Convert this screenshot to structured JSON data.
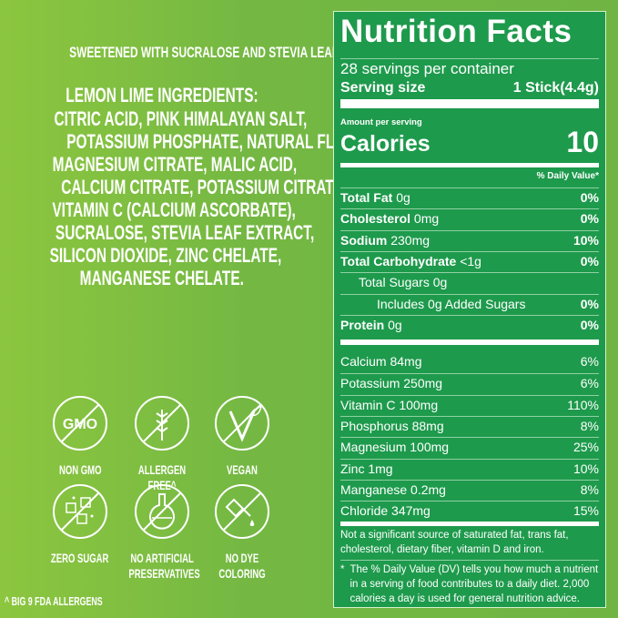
{
  "left": {
    "sweetener": "SWEETENED WITH SUCRALOSE AND STEVIA LEAF EXTRACT",
    "ingredients_title": "LEMON LIME INGREDIENTS:",
    "ingredients_lines": [
      "CITRIC ACID, PINK HIMALAYAN SALT,",
      "POTASSIUM PHOSPHATE, NATURAL FLAVOR,",
      "MAGNESIUM CITRATE, MALIC ACID,",
      "CALCIUM CITRATE, POTASSIUM CITRATE,",
      "VITAMIN C (CALCIUM ASCORBATE),",
      "SUCRALOSE, STEVIA LEAF EXTRACT,",
      "SILICON DIOXIDE, ZINC CHELATE,",
      "MANGANESE CHELATE."
    ],
    "badges": [
      {
        "icon": "non-gmo-icon",
        "label": "NON GMO",
        "icon_text": "GMO"
      },
      {
        "icon": "wheat-icon",
        "label": "ALLERGEN FREE^"
      },
      {
        "icon": "vegan-icon",
        "label": "VEGAN"
      },
      {
        "icon": "sugar-cubes-icon",
        "label": "ZERO SUGAR"
      },
      {
        "icon": "flask-icon",
        "label": "NO ARTIFICIAL",
        "label2": "PRESERVATIVES"
      },
      {
        "icon": "dropper-icon",
        "label": "NO DYE COLORING"
      }
    ],
    "footnote": "^ BIG 9 FDA ALLERGENS"
  },
  "facts": {
    "title": "Nutrition Facts",
    "servings": "28 servings per container",
    "serving_size_label": "Serving size",
    "serving_size_value": "1 Stick(4.4g)",
    "amount_per_serving": "Amount per serving",
    "calories_label": "Calories",
    "calories_value": "10",
    "dv_header": "% Daily Value*",
    "nutrients": [
      {
        "name": "Total Fat",
        "amount": "0g",
        "dv": "0%"
      },
      {
        "name": "Cholesterol",
        "amount": "0mg",
        "dv": "0%"
      },
      {
        "name": "Sodium",
        "amount": "230mg",
        "dv": "10%"
      },
      {
        "name": "Total Carbohydrate",
        "amount": "<1g",
        "dv": "0%"
      },
      {
        "name": "Total Sugars",
        "amount": "0g",
        "dv": ""
      },
      {
        "name": "Includes",
        "amount": "0g Added Sugars",
        "dv": "0%"
      },
      {
        "name": "Protein",
        "amount": "0g",
        "dv": "0%"
      }
    ],
    "minerals": [
      {
        "name": "Calcium 84mg",
        "dv": "6%"
      },
      {
        "name": "Potassium 250mg",
        "dv": "6%"
      },
      {
        "name": "Vitamin C 100mg",
        "dv": "110%"
      },
      {
        "name": "Phosphorus 88mg",
        "dv": "8%"
      },
      {
        "name": "Magnesium 100mg",
        "dv": "25%"
      },
      {
        "name": "Zinc 1mg",
        "dv": "10%"
      },
      {
        "name": "Manganese 0.2mg",
        "dv": "8%"
      },
      {
        "name": "Chloride 347mg",
        "dv": "15%"
      }
    ],
    "not_significant": "Not a significant source of saturated fat, trans fat, cholesterol, dietary fiber, vitamin D and iron.",
    "dv_note_star": "*",
    "dv_note": "The % Daily Value (DV) tells you how much a nutrient in a serving of food contributes to a daily diet. 2,000 calories a day is used for general nutrition advice."
  },
  "colors": {
    "background": "#74b843",
    "panel": "#1e9a4c",
    "text": "#ffffff"
  }
}
